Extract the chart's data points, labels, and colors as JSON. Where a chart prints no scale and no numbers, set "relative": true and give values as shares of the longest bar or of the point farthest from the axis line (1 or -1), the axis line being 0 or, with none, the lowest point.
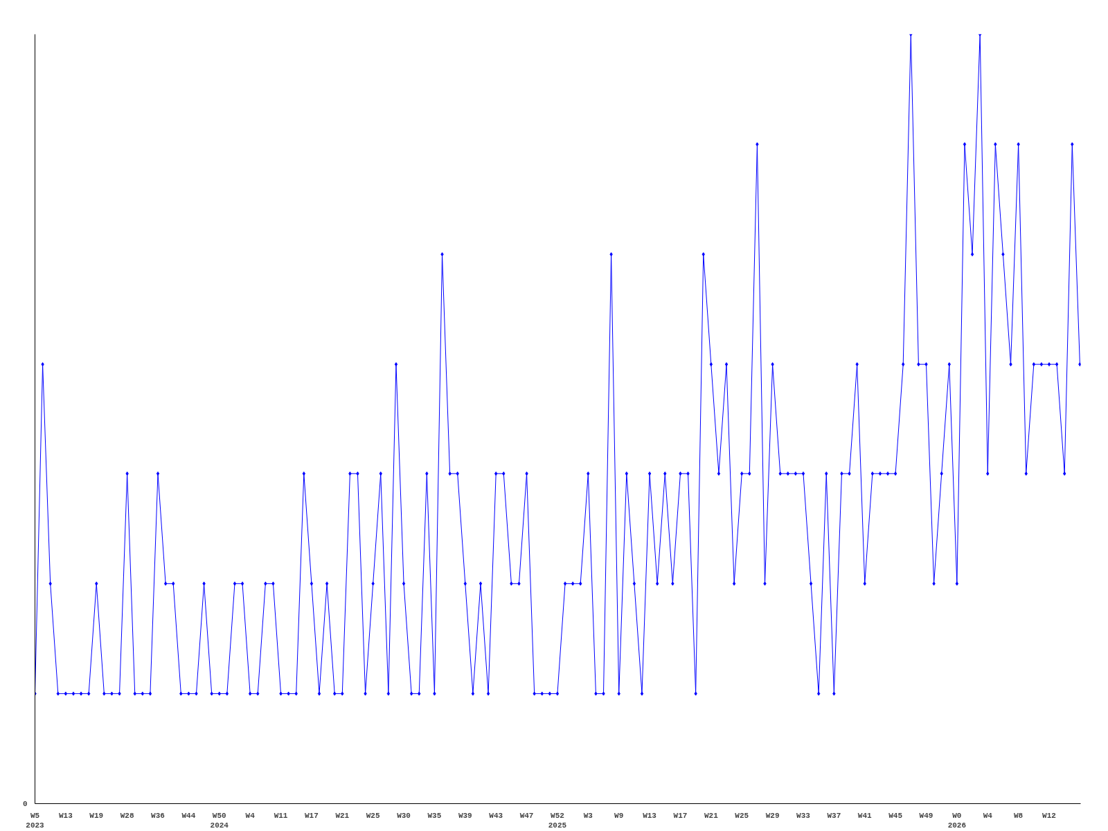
{
  "chart_data": {
    "type": "line",
    "relative": true,
    "annotations": [
      "0"
    ],
    "marker": "diamond",
    "line_style": "solid",
    "grid": false,
    "categories": [
      "W5\n2023",
      null,
      null,
      null,
      "W13",
      null,
      null,
      null,
      "W19",
      null,
      null,
      null,
      "W28",
      null,
      null,
      null,
      "W36",
      null,
      null,
      null,
      "W44",
      null,
      null,
      null,
      "W50\n2024",
      null,
      null,
      null,
      "W4",
      null,
      null,
      null,
      "W11",
      null,
      null,
      null,
      "W17",
      null,
      null,
      null,
      "W21",
      null,
      null,
      null,
      "W25",
      null,
      null,
      null,
      "W30",
      null,
      null,
      null,
      "W35",
      null,
      null,
      null,
      "W39",
      null,
      null,
      null,
      "W43",
      null,
      null,
      null,
      "W47",
      null,
      null,
      null,
      "W52\n2025",
      null,
      null,
      null,
      "W3",
      null,
      null,
      null,
      "W9",
      null,
      null,
      null,
      "W13",
      null,
      null,
      null,
      "W17",
      null,
      null,
      null,
      "W21",
      null,
      null,
      null,
      "W25",
      null,
      null,
      null,
      "W29",
      null,
      null,
      null,
      "W33",
      null,
      null,
      null,
      "W37",
      null,
      null,
      null,
      "W41",
      null,
      null,
      null,
      "W45",
      null,
      null,
      null,
      "W49",
      null,
      null,
      null,
      "W0\n2026",
      null,
      null,
      null,
      "W4",
      null,
      null,
      null,
      "W8",
      null,
      null,
      null,
      "W12",
      null,
      null,
      null,
      null
    ],
    "series": [
      {
        "color": "#0000ff",
        "values": [
          0.143,
          0.571,
          0.286,
          0.143,
          0.143,
          0.143,
          0.143,
          0.143,
          0.286,
          0.143,
          0.143,
          0.143,
          0.429,
          0.143,
          0.143,
          0.143,
          0.429,
          0.286,
          0.286,
          0.143,
          0.143,
          0.143,
          0.286,
          0.143,
          0.143,
          0.143,
          0.286,
          0.286,
          0.143,
          0.143,
          0.286,
          0.286,
          0.143,
          0.143,
          0.143,
          0.429,
          0.286,
          0.143,
          0.286,
          0.143,
          0.143,
          0.429,
          0.429,
          0.143,
          0.286,
          0.429,
          0.143,
          0.571,
          0.286,
          0.143,
          0.143,
          0.429,
          0.143,
          0.714,
          0.429,
          0.429,
          0.286,
          0.143,
          0.286,
          0.143,
          0.429,
          0.429,
          0.286,
          0.286,
          0.429,
          0.143,
          0.143,
          0.143,
          0.143,
          0.286,
          0.286,
          0.286,
          0.429,
          0.143,
          0.143,
          0.714,
          0.143,
          0.429,
          0.286,
          0.143,
          0.429,
          0.286,
          0.429,
          0.286,
          0.429,
          0.429,
          0.143,
          0.714,
          0.571,
          0.429,
          0.571,
          0.286,
          0.429,
          0.429,
          0.857,
          0.286,
          0.571,
          0.429,
          0.429,
          0.429,
          0.429,
          0.286,
          0.143,
          0.429,
          0.143,
          0.429,
          0.429,
          0.571,
          0.286,
          0.429,
          0.429,
          0.429,
          0.429,
          0.571,
          1,
          0.571,
          0.571,
          0.286,
          0.429,
          0.571,
          0.286,
          0.857,
          0.714,
          1,
          0.429,
          0.857,
          0.714,
          0.571,
          0.857,
          0.429,
          0.571,
          0.571,
          0.571,
          0.571,
          0.429,
          0.857,
          0.571
        ]
      }
    ]
  }
}
